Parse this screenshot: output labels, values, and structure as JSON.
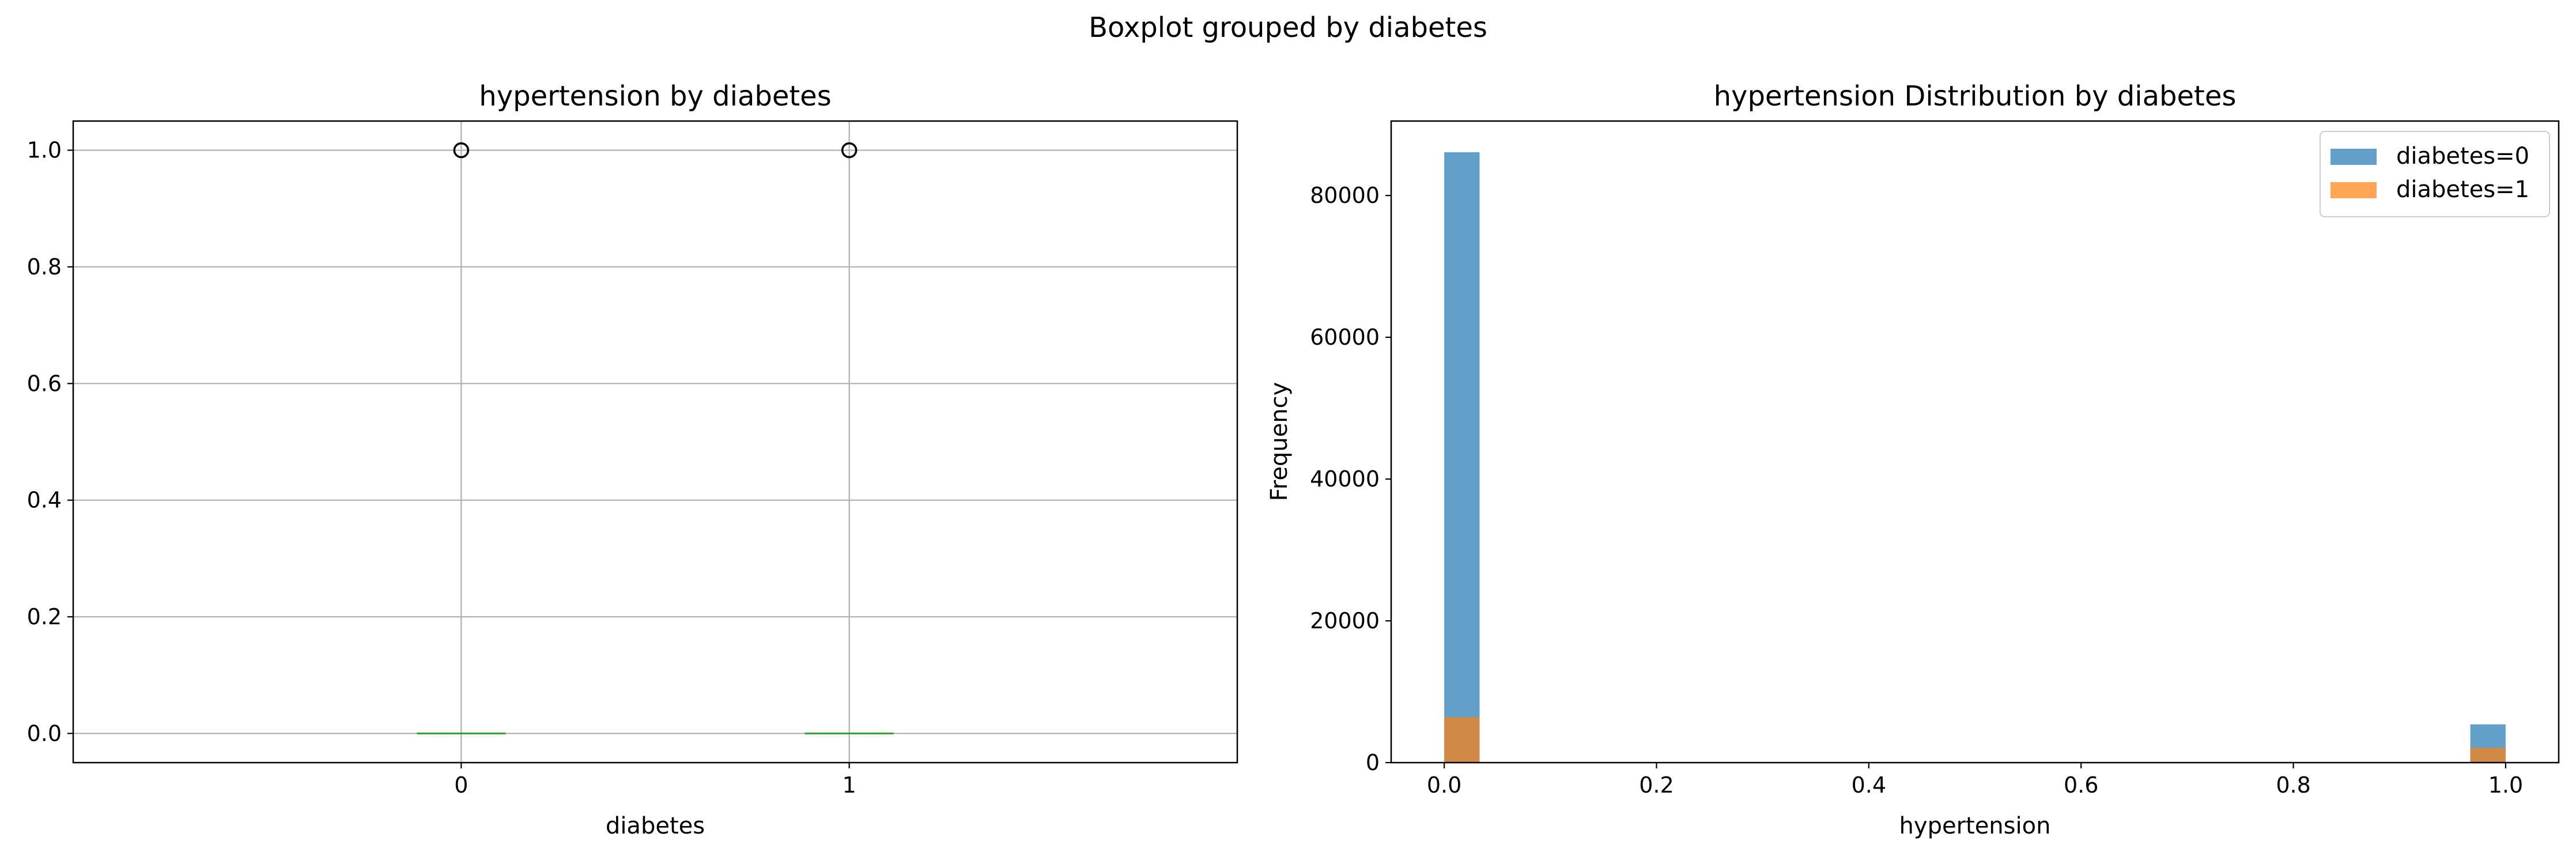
{
  "figure": {
    "suptitle": "Boxplot grouped by diabetes"
  },
  "colors": {
    "series0": "#1f77b4",
    "series1": "#ff7f0e",
    "median": "#2ca02c",
    "grid": "#b0b0b0",
    "axis": "#000000"
  },
  "chart_data": [
    {
      "type": "box",
      "title": "hypertension by diabetes",
      "xlabel": "diabetes",
      "ylabel": "",
      "categories": [
        "0",
        "1"
      ],
      "yticks": [
        "0.0",
        "0.2",
        "0.4",
        "0.6",
        "0.8",
        "1.0"
      ],
      "ylim": [
        -0.05,
        1.05
      ],
      "grid": true,
      "boxes": [
        {
          "category": "0",
          "q1": 0,
          "median": 0,
          "q3": 0,
          "whisker_low": 0,
          "whisker_high": 0,
          "outliers": [
            1.0
          ]
        },
        {
          "category": "1",
          "q1": 0,
          "median": 0,
          "q3": 0,
          "whisker_low": 0,
          "whisker_high": 0,
          "outliers": [
            1.0
          ]
        }
      ]
    },
    {
      "type": "histogram",
      "title": "hypertension Distribution by diabetes",
      "xlabel": "hypertension",
      "ylabel": "Frequency",
      "xticks": [
        "0.0",
        "0.2",
        "0.4",
        "0.6",
        "0.8",
        "1.0"
      ],
      "yticks": [
        "0",
        "20000",
        "40000",
        "60000",
        "80000"
      ],
      "xlim": [
        -0.05,
        1.05
      ],
      "ylim": [
        0,
        90500
      ],
      "grid": false,
      "legend_position": "top-right",
      "series": [
        {
          "name": "diabetes=0",
          "bins": [
            {
              "x0": 0.0,
              "x1": 0.0333,
              "count": 86100
            },
            {
              "x0": 0.9667,
              "x1": 1.0,
              "count": 5400
            }
          ]
        },
        {
          "name": "diabetes=1",
          "bins": [
            {
              "x0": 0.0,
              "x1": 0.0333,
              "count": 6400
            },
            {
              "x0": 0.9667,
              "x1": 1.0,
              "count": 2100
            }
          ]
        }
      ]
    }
  ]
}
